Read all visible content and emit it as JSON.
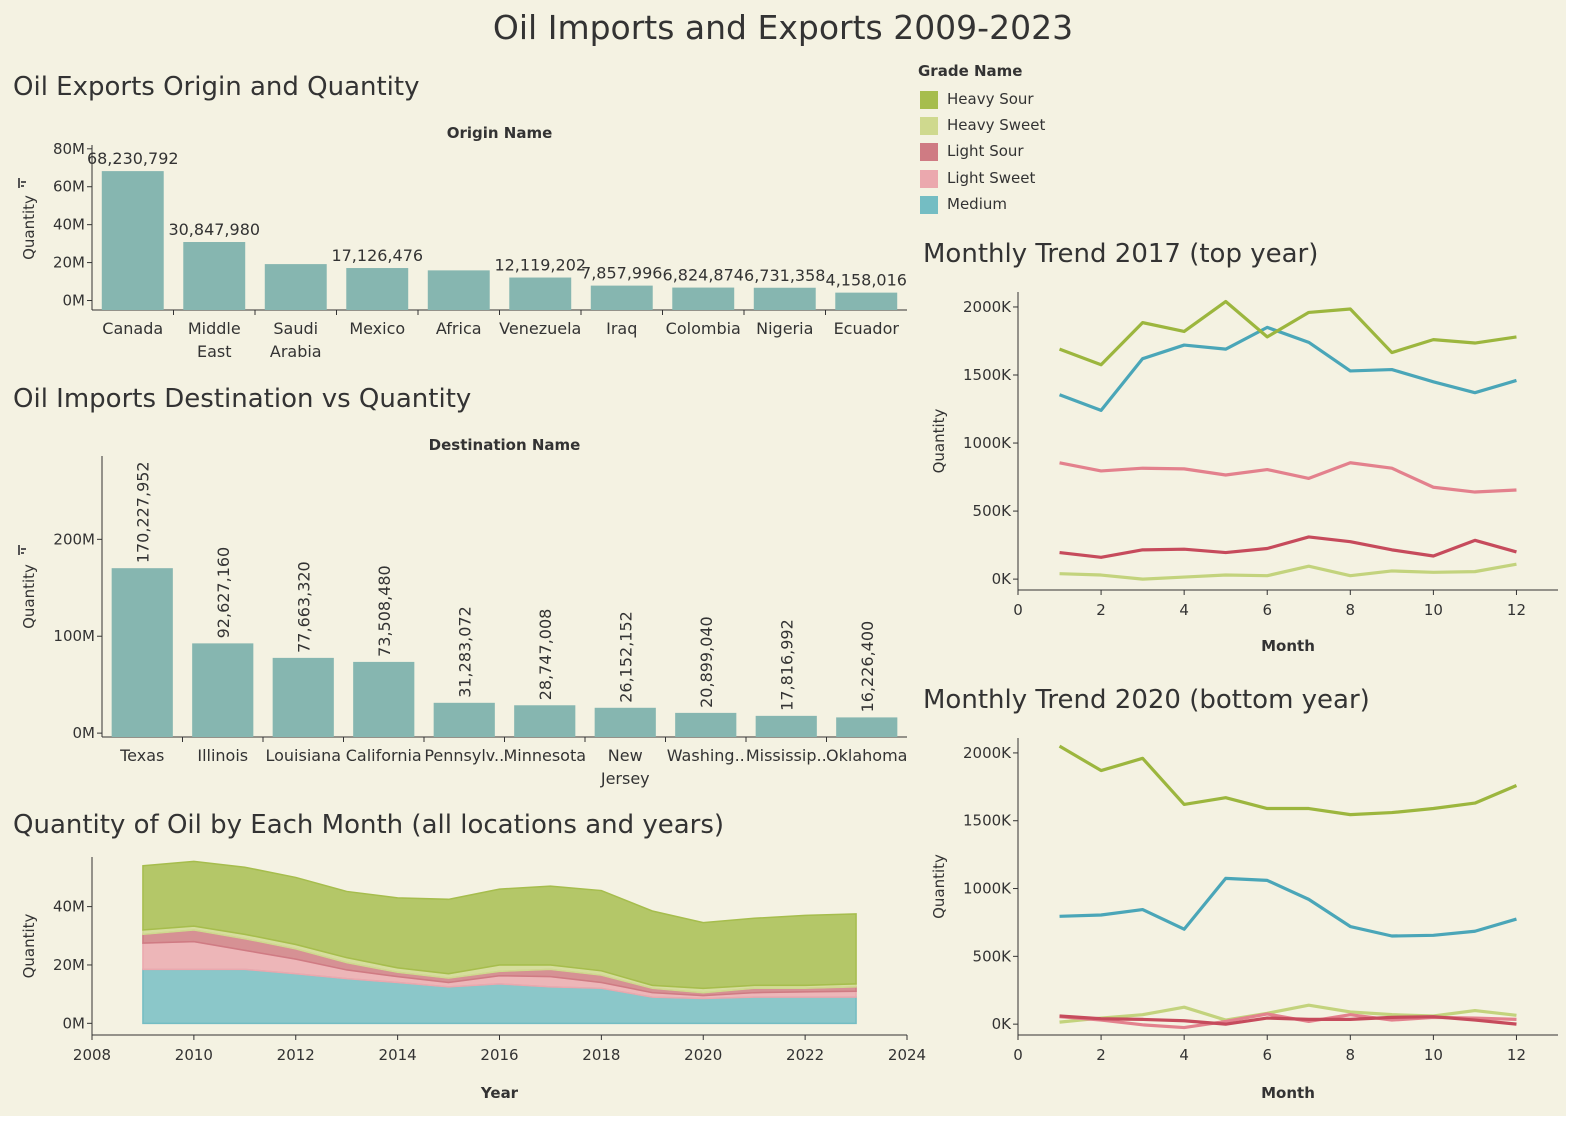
{
  "dashboard": {
    "title": "Oil Imports and Exports 2009-2023",
    "colors": {
      "background": "#f4f2e2",
      "bar": "#86b6b0",
      "axis": "#333333"
    }
  },
  "legend": {
    "title": "Grade Name",
    "items": [
      {
        "name": "Heavy Sour",
        "color": "#a6bd4d"
      },
      {
        "name": "Heavy Sweet",
        "color": "#cfd98e"
      },
      {
        "name": "Light Sour",
        "color": "#cf7b83"
      },
      {
        "name": "Light Sweet",
        "color": "#eba8ae"
      },
      {
        "name": "Medium",
        "color": "#74bdc3"
      }
    ]
  },
  "chart_data": [
    {
      "id": "exports",
      "type": "bar",
      "title": "Oil Exports Origin and Quantity",
      "header": "Origin Name",
      "ylabel": "Quantity",
      "categories": [
        [
          "Canada"
        ],
        [
          "Middle",
          "East"
        ],
        [
          "Saudi",
          "Arabia"
        ],
        [
          "Mexico"
        ],
        [
          "Africa"
        ],
        [
          "Venezuela"
        ],
        [
          "Iraq"
        ],
        [
          "Colombia"
        ],
        [
          "Nigeria"
        ],
        [
          "Ecuador"
        ]
      ],
      "values": [
        68230792,
        30847980,
        19200000,
        17126476,
        15900000,
        12119202,
        7857996,
        6824874,
        6731358,
        4158016
      ],
      "labels": [
        "68,230,792",
        "30,847,980",
        "",
        "17,126,476",
        "",
        "12,119,202",
        "7,857,996",
        "6,824,874",
        "6,731,358",
        "4,158,016"
      ],
      "yticks": [
        0,
        20000000,
        40000000,
        60000000,
        80000000
      ],
      "ytick_labels": [
        "0M",
        "20M",
        "40M",
        "60M",
        "80M"
      ],
      "ylim": [
        -5000000,
        82000000
      ]
    },
    {
      "id": "imports",
      "type": "bar",
      "title": "Oil Imports Destination vs Quantity",
      "header": "Destination Name",
      "ylabel": "Quantity",
      "categories": [
        [
          "Texas"
        ],
        [
          "Illinois"
        ],
        [
          "Louisiana"
        ],
        [
          "California"
        ],
        [
          "Pennsylv.."
        ],
        [
          "Minnesota"
        ],
        [
          "New",
          "Jersey"
        ],
        [
          "Washing.."
        ],
        [
          "Mississip.."
        ],
        [
          "Oklahoma"
        ]
      ],
      "values": [
        170227952,
        92627160,
        77663320,
        73508480,
        31283072,
        28747008,
        26152152,
        20899040,
        17816992,
        16226400
      ],
      "labels": [
        "170,227,952",
        "92,627,160",
        "77,663,320",
        "73,508,480",
        "31,283,072",
        "28,747,008",
        "26,152,152",
        "20,899,040",
        "17,816,992",
        "16,226,400"
      ],
      "yticks": [
        0,
        100000000,
        200000000
      ],
      "ytick_labels": [
        "0M",
        "100M",
        "200M"
      ],
      "ylim": [
        -4000000,
        286000000
      ]
    },
    {
      "id": "area",
      "type": "area",
      "title": "Quantity of Oil by Each Month (all locations and years)",
      "xlabel": "Year",
      "ylabel": "Quantity",
      "x": [
        2009,
        2010,
        2011,
        2012,
        2013,
        2014,
        2015,
        2016,
        2017,
        2018,
        2019,
        2020,
        2021,
        2022,
        2023
      ],
      "series": [
        {
          "name": "Medium",
          "values": [
            18.5,
            18.5,
            18.5,
            17,
            15.3,
            14,
            12.5,
            13.5,
            12.5,
            12,
            9,
            8.5,
            9,
            9,
            9
          ]
        },
        {
          "name": "Light Sweet",
          "values": [
            9,
            9.5,
            6.5,
            5,
            3,
            2,
            1.5,
            2.8,
            3.5,
            2,
            1.5,
            1,
            1.5,
            1.8,
            2
          ]
        },
        {
          "name": "Light Sour",
          "values": [
            3,
            4,
            4,
            3.5,
            2.5,
            1.5,
            1.5,
            1.5,
            2.5,
            2.5,
            1.5,
            1,
            1.5,
            1.2,
            1.5
          ]
        },
        {
          "name": "Heavy Sweet",
          "values": [
            1.5,
            1.3,
            1.5,
            1.5,
            1.7,
            1.5,
            1.5,
            2.2,
            1.5,
            1.5,
            1,
            1.5,
            1,
            1,
            1
          ]
        },
        {
          "name": "Heavy Sour",
          "values": [
            22,
            22.2,
            23,
            23,
            22.7,
            24,
            25.5,
            26,
            27,
            27.5,
            25.5,
            22.5,
            23,
            24,
            24
          ]
        }
      ],
      "xticks": [
        2008,
        2010,
        2012,
        2014,
        2016,
        2018,
        2020,
        2022,
        2024
      ],
      "yticks": [
        0,
        20,
        40
      ],
      "ytick_labels": [
        "0M",
        "20M",
        "40M"
      ],
      "xlim": [
        2008,
        2024
      ],
      "ylim": [
        -4,
        57
      ]
    },
    {
      "id": "trend2017",
      "type": "line",
      "title": "Monthly Trend 2017 (top year)",
      "xlabel": "Month",
      "ylabel": "Quantity",
      "x": [
        1,
        2,
        3,
        4,
        5,
        6,
        7,
        8,
        9,
        10,
        11,
        12
      ],
      "series": [
        {
          "name": "Heavy Sour",
          "values": [
            1690,
            1575,
            1885,
            1820,
            2040,
            1780,
            1960,
            1985,
            1665,
            1760,
            1735,
            1780
          ]
        },
        {
          "name": "Heavy Sweet",
          "values": [
            40,
            30,
            0,
            15,
            30,
            25,
            95,
            25,
            60,
            50,
            55,
            110
          ]
        },
        {
          "name": "Light Sour",
          "values": [
            195,
            160,
            215,
            220,
            195,
            225,
            310,
            275,
            215,
            170,
            285,
            200
          ]
        },
        {
          "name": "Light Sweet",
          "values": [
            855,
            795,
            815,
            810,
            765,
            805,
            740,
            855,
            815,
            675,
            640,
            655
          ]
        },
        {
          "name": "Medium",
          "values": [
            1355,
            1240,
            1620,
            1720,
            1690,
            1850,
            1740,
            1530,
            1540,
            1450,
            1370,
            1460
          ]
        }
      ],
      "xticks": [
        0,
        2,
        4,
        6,
        8,
        10,
        12
      ],
      "yticks": [
        0,
        500,
        1000,
        1500,
        2000
      ],
      "ytick_labels": [
        "0K",
        "500K",
        "1000K",
        "1500K",
        "2000K"
      ],
      "xlim": [
        0,
        13
      ],
      "ylim": [
        -80,
        2110
      ]
    },
    {
      "id": "trend2020",
      "type": "line",
      "title": "Monthly Trend 2020 (bottom year)",
      "xlabel": "Month",
      "ylabel": "Quantity",
      "x": [
        1,
        2,
        3,
        4,
        5,
        6,
        7,
        8,
        9,
        10,
        11,
        12
      ],
      "series": [
        {
          "name": "Heavy Sour",
          "values": [
            2050,
            1870,
            1960,
            1620,
            1670,
            1590,
            1590,
            1545,
            1560,
            1590,
            1630,
            1760
          ]
        },
        {
          "name": "Heavy Sweet",
          "values": [
            15,
            45,
            70,
            125,
            30,
            80,
            140,
            90,
            70,
            60,
            100,
            65
          ]
        },
        {
          "name": "Light Sour",
          "values": [
            60,
            40,
            35,
            25,
            0,
            45,
            35,
            35,
            50,
            55,
            30,
            0
          ]
        },
        {
          "name": "Light Sweet",
          "values": [
            55,
            30,
            -5,
            -25,
            20,
            75,
            20,
            70,
            30,
            50,
            45,
            35
          ]
        },
        {
          "name": "Medium",
          "values": [
            795,
            805,
            845,
            700,
            1075,
            1060,
            920,
            720,
            650,
            655,
            685,
            775
          ]
        }
      ],
      "xticks": [
        0,
        2,
        4,
        6,
        8,
        10,
        12
      ],
      "yticks": [
        0,
        500,
        1000,
        1500,
        2000
      ],
      "ytick_labels": [
        "0K",
        "500K",
        "1000K",
        "1500K",
        "2000K"
      ],
      "xlim": [
        0,
        13
      ],
      "ylim": [
        -80,
        2110
      ]
    }
  ]
}
